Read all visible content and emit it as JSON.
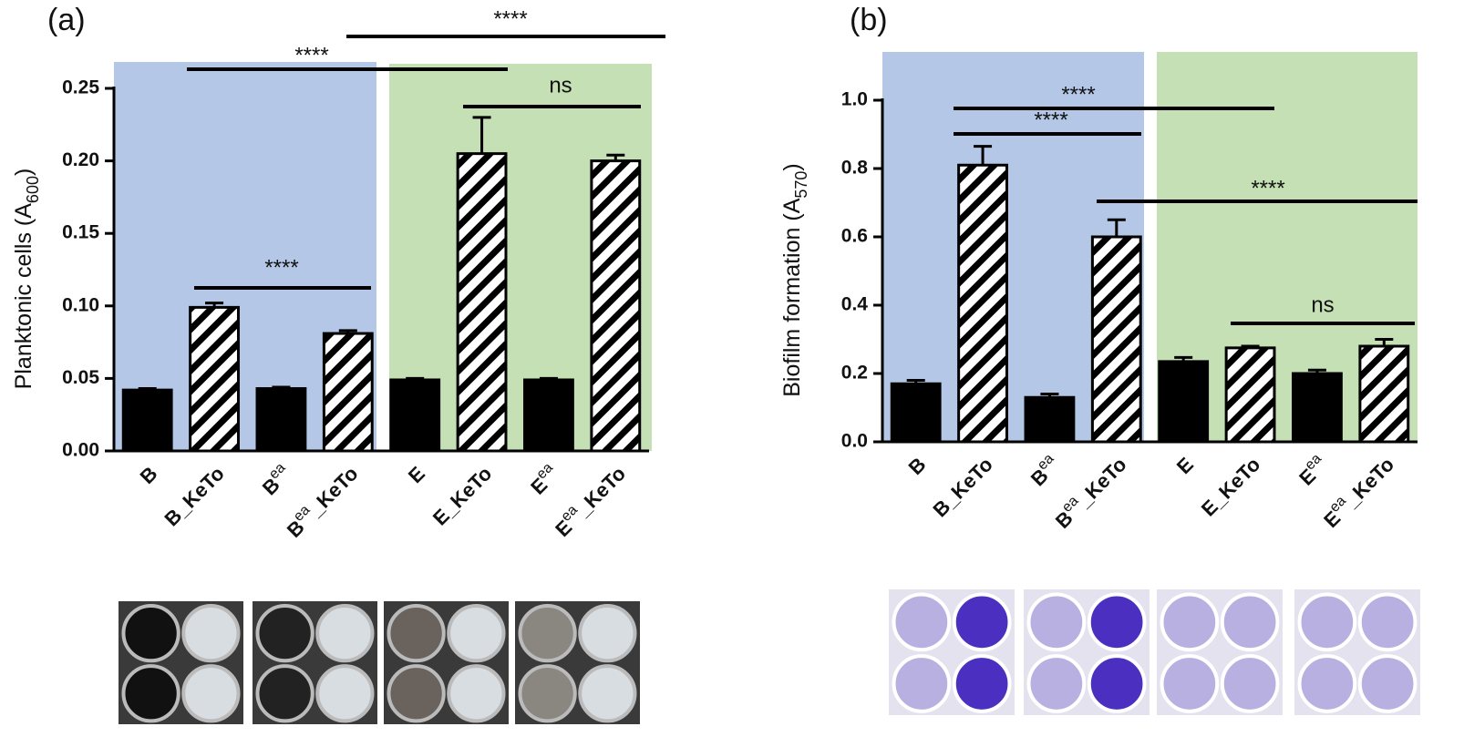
{
  "chart_data": [
    {
      "type": "bar",
      "panel": "(a)",
      "y_label": {
        "text": "Planktonic cells (A",
        "sub": "600",
        "after": ")"
      },
      "categories": [
        {
          "text": "B"
        },
        {
          "text": "B_KeTo"
        },
        {
          "text": "B",
          "sup": "ea"
        },
        {
          "text": "B",
          "sup": "ea",
          "after": "_KeTo"
        },
        {
          "text": "E"
        },
        {
          "text": "E_KeTo"
        },
        {
          "text": "E",
          "sup": "ea"
        },
        {
          "text": "E",
          "sup": "ea",
          "after": "_KeTo"
        }
      ],
      "values": [
        0.042,
        0.099,
        0.043,
        0.081,
        0.049,
        0.205,
        0.049,
        0.2
      ],
      "errors": [
        0.001,
        0.003,
        0.001,
        0.002,
        0.001,
        0.025,
        0.001,
        0.004
      ],
      "hatched": [
        false,
        true,
        false,
        true,
        false,
        true,
        false,
        true
      ],
      "color": "#000000",
      "ylim": [
        0,
        0.25
      ],
      "yticks": [
        {
          "value": 0,
          "label": "0.00"
        },
        0.05,
        {
          "value": 0.1,
          "label": "0.10"
        },
        0.15,
        {
          "value": 0.2,
          "label": "0.20"
        },
        0.25
      ],
      "annotations": [
        "****",
        "****",
        "ns",
        "****"
      ]
    },
    {
      "type": "bar",
      "panel": "(b)",
      "y_label": {
        "text": "Biofilm formation (A",
        "sub": "570",
        "after": ")"
      },
      "categories": [
        {
          "text": "B"
        },
        {
          "text": "B_KeTo"
        },
        {
          "text": "B",
          "sup": "ea"
        },
        {
          "text": "B",
          "sup": "ea",
          "after": "_KeTo"
        },
        {
          "text": "E"
        },
        {
          "text": "E_KeTo"
        },
        {
          "text": "E",
          "sup": "ea"
        },
        {
          "text": "E",
          "sup": "ea",
          "after": "_KeTo"
        }
      ],
      "values": [
        0.17,
        0.81,
        0.13,
        0.6,
        0.235,
        0.275,
        0.2,
        0.28
      ],
      "errors": [
        0.01,
        0.055,
        0.01,
        0.05,
        0.012,
        0.005,
        0.01,
        0.02
      ],
      "hatched": [
        false,
        true,
        false,
        true,
        false,
        true,
        false,
        true
      ],
      "color": "#000000",
      "ylim": [
        0,
        1
      ],
      "yticks": [
        {
          "value": 0,
          "label": "0.0"
        },
        0.2,
        0.4,
        0.6,
        0.8,
        {
          "value": 1,
          "label": "1.0"
        }
      ],
      "annotations": [
        "****",
        "****",
        "****",
        "ns"
      ]
    }
  ]
}
